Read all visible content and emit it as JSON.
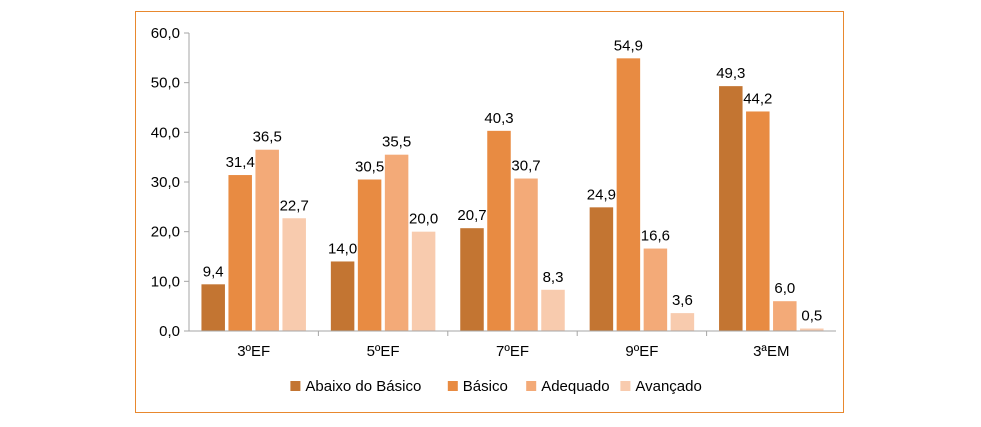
{
  "chart_data": {
    "type": "bar",
    "categories": [
      "3ºEF",
      "5ºEF",
      "7ºEF",
      "9ºEF",
      "3ªEM"
    ],
    "series": [
      {
        "name": "Abaixo do Básico",
        "color": "#c37532",
        "values": [
          9.4,
          14.0,
          20.7,
          24.9,
          49.3
        ],
        "labels": [
          "9,4",
          "14,0",
          "20,7",
          "24,9",
          "49,3"
        ]
      },
      {
        "name": "Básico",
        "color": "#e88b42",
        "values": [
          31.4,
          30.5,
          40.3,
          54.9,
          44.2
        ],
        "labels": [
          "31,4",
          "30,5",
          "40,3",
          "54,9",
          "44,2"
        ]
      },
      {
        "name": "Adequado",
        "color": "#f3aa78",
        "values": [
          36.5,
          35.5,
          30.7,
          16.6,
          6.0
        ],
        "labels": [
          "36,5",
          "35,5",
          "30,7",
          "16,6",
          "6,0"
        ]
      },
      {
        "name": "Avançado",
        "color": "#f8cbae",
        "values": [
          22.7,
          20.0,
          8.3,
          3.6,
          0.5
        ],
        "labels": [
          "22,7",
          "20,0",
          "8,3",
          "3,6",
          "0,5"
        ]
      }
    ],
    "ylim": [
      0,
      60
    ],
    "yticks": [
      0,
      10,
      20,
      30,
      40,
      50,
      60
    ],
    "ytick_labels": [
      "0,0",
      "10,0",
      "20,0",
      "30,0",
      "40,0",
      "50,0",
      "60,0"
    ],
    "grid": false,
    "legend_position": "bottom",
    "frame_color": "#e8882e",
    "axis_color": "#a6a6a6"
  }
}
